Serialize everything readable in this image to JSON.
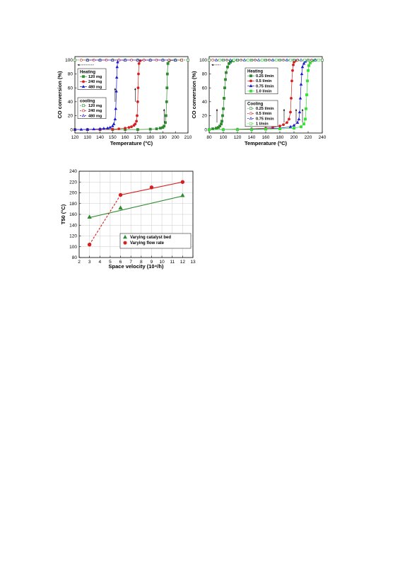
{
  "figures": {
    "left_top": {
      "xlabel": "Temperature (°C)",
      "ylabel": "CO conversion (%)",
      "xticks": [
        "120",
        "130",
        "140",
        "150",
        "160",
        "170",
        "180",
        "190",
        "200",
        "210"
      ],
      "yticks": [
        "0",
        "20",
        "40",
        "60",
        "80",
        "100"
      ],
      "heating_title": "Heating",
      "cooling_title": "cooling",
      "heating_entries": [
        "120 mg",
        "240 mg",
        "480 mg"
      ],
      "cooling_entries": [
        "120 mg",
        "240 mg",
        "480 mg"
      ]
    },
    "right_top": {
      "xlabel": "Temperature (ºC)",
      "ylabel": "CO conversion (%)",
      "xticks": [
        "80",
        "100",
        "120",
        "140",
        "160",
        "180",
        "200",
        "220",
        "240"
      ],
      "yticks": [
        "0",
        "20",
        "40",
        "60",
        "80",
        "100"
      ],
      "heating_title": "Heating",
      "cooling_title": "Cooling",
      "heating_entries": [
        "0.25 l/min",
        "0.5 l/min",
        "0.75 l/min",
        "1.0 l/min"
      ],
      "cooling_entries": [
        "0.25 l/min",
        "0.5 l/min",
        "0.75 l/min",
        "1 l/min"
      ]
    },
    "bottom": {
      "xlabel": "Space velocity (10⁴/h)",
      "ylabel": "T50 (°C)",
      "xticks": [
        "2",
        "3",
        "4",
        "5",
        "6",
        "7",
        "8",
        "9",
        "10",
        "11",
        "12",
        "13"
      ],
      "yticks": [
        "80",
        "100",
        "120",
        "140",
        "160",
        "180",
        "200",
        "220",
        "240"
      ],
      "legend": [
        "Varying catalyst bed",
        "Varying flow rate"
      ]
    }
  },
  "colors": {
    "green": "#2e8b2e",
    "red": "#d62020",
    "blue": "#1a1ad0",
    "lightgreen": "#33e033",
    "grid": "#cccccc"
  },
  "chart_data": [
    {
      "type": "line",
      "xlabel": "Temperature (°C)",
      "ylabel": "CO conversion (%)",
      "xlim": [
        120,
        210
      ],
      "ylim": [
        -5,
        105
      ],
      "series": [
        {
          "name": "Heating 120 mg",
          "mode": "heating",
          "color": "green",
          "marker": "square",
          "x": [
            120,
            130,
            140,
            150,
            160,
            170,
            180,
            185,
            188,
            190,
            191,
            192,
            192.5,
            193,
            193.3,
            193.6,
            194,
            195,
            200,
            205
          ],
          "y": [
            0,
            0,
            0,
            0,
            0,
            0,
            0.5,
            1,
            2,
            3,
            5,
            10,
            20,
            40,
            60,
            80,
            95,
            99,
            100,
            100
          ]
        },
        {
          "name": "Heating 240 mg",
          "mode": "heating",
          "color": "red",
          "marker": "circle",
          "x": [
            120,
            130,
            140,
            150,
            155,
            160,
            163,
            165,
            167,
            168,
            169,
            169.5,
            170,
            170.3,
            170.6,
            171,
            172,
            175,
            180
          ],
          "y": [
            0,
            0,
            0,
            0.5,
            1,
            2,
            3,
            4,
            6,
            8,
            12,
            20,
            40,
            60,
            80,
            95,
            99,
            100,
            100
          ]
        },
        {
          "name": "Heating 480 mg",
          "mode": "heating",
          "color": "blue",
          "marker": "triangle",
          "x": [
            120,
            125,
            130,
            135,
            140,
            143,
            146,
            148,
            150,
            151,
            152,
            152.5,
            153,
            153.3,
            153.6,
            154,
            155,
            160
          ],
          "y": [
            0,
            0,
            0,
            0.5,
            1,
            1.5,
            2,
            3,
            5,
            8,
            15,
            30,
            55,
            75,
            90,
            97,
            100,
            100
          ]
        },
        {
          "name": "cooling 120 mg",
          "mode": "cooling",
          "color": "green",
          "marker": "square-open",
          "x": [
            120,
            130,
            140,
            150,
            160,
            170,
            180,
            190,
            200,
            210
          ],
          "y": [
            100,
            100,
            100,
            100,
            100,
            100,
            100,
            100,
            100,
            100
          ]
        },
        {
          "name": "cooling 240 mg",
          "mode": "cooling",
          "color": "red",
          "marker": "circle-open",
          "x": [
            125,
            135,
            145,
            155,
            165,
            175,
            185,
            195,
            205
          ],
          "y": [
            100,
            100,
            100,
            100,
            100,
            100,
            100,
            100,
            100
          ]
        },
        {
          "name": "cooling 480 mg",
          "mode": "cooling",
          "color": "blue",
          "marker": "triangle-open",
          "x": [
            130,
            140,
            150,
            160,
            170,
            180,
            190,
            200
          ],
          "y": [
            100,
            100,
            100,
            100,
            100,
            100,
            100,
            100
          ]
        }
      ],
      "legend": "left"
    },
    {
      "type": "line",
      "xlabel": "Temperature (ºC)",
      "ylabel": "CO conversion (%)",
      "xlim": [
        80,
        240
      ],
      "ylim": [
        -5,
        105
      ],
      "series": [
        {
          "name": "Heating 0.25 l/min",
          "mode": "heating",
          "color": "green",
          "marker": "square",
          "x": [
            80,
            85,
            90,
            93,
            95,
            97,
            98,
            99,
            100,
            101,
            102,
            103,
            104,
            106,
            108,
            110,
            114,
            120
          ],
          "y": [
            0,
            1,
            2,
            3,
            5,
            8,
            12,
            20,
            30,
            45,
            60,
            72,
            82,
            90,
            95,
            97,
            99,
            100
          ]
        },
        {
          "name": "Heating 0.5 l/min",
          "mode": "heating",
          "color": "red",
          "marker": "circle",
          "x": [
            80,
            100,
            120,
            140,
            160,
            170,
            180,
            185,
            190,
            193,
            195,
            196,
            197,
            198,
            199,
            200,
            202,
            205
          ],
          "y": [
            0,
            0,
            0.5,
            1,
            2,
            3,
            5,
            7,
            10,
            15,
            25,
            45,
            70,
            85,
            93,
            97,
            99,
            100
          ]
        },
        {
          "name": "Heating 0.75 l/min",
          "mode": "heating",
          "color": "blue",
          "marker": "triangle",
          "x": [
            80,
            100,
            120,
            140,
            160,
            180,
            195,
            200,
            205,
            207,
            208,
            209,
            210,
            211,
            212,
            214,
            216,
            220
          ],
          "y": [
            0,
            0,
            0,
            0.5,
            1,
            2,
            4,
            6,
            10,
            15,
            25,
            45,
            65,
            80,
            90,
            95,
            98,
            100
          ]
        },
        {
          "name": "Heating 1.0 l/min",
          "mode": "heating",
          "color": "lightgreen",
          "marker": "square",
          "x": [
            80,
            100,
            120,
            140,
            160,
            180,
            200,
            210,
            214,
            216,
            217,
            218,
            219,
            220,
            221,
            223,
            226,
            230
          ],
          "y": [
            0,
            0,
            0,
            0,
            0.5,
            1,
            2,
            4,
            8,
            15,
            30,
            50,
            70,
            85,
            92,
            96,
            99,
            100
          ]
        },
        {
          "name": "Cooling 0.25 l/min",
          "mode": "cooling",
          "color": "green",
          "marker": "square-open",
          "x": [
            80,
            100,
            120,
            140,
            160,
            180,
            200,
            220,
            240
          ],
          "y": [
            100,
            100,
            100,
            100,
            100,
            100,
            100,
            100,
            100
          ]
        },
        {
          "name": "Cooling 0.5 l/min",
          "mode": "cooling",
          "color": "red",
          "marker": "circle-open",
          "x": [
            85,
            105,
            125,
            145,
            165,
            185,
            205,
            225
          ],
          "y": [
            100,
            100,
            100,
            100,
            100,
            100,
            100,
            100
          ]
        },
        {
          "name": "Cooling 0.75 l/min",
          "mode": "cooling",
          "color": "blue",
          "marker": "triangle-open",
          "x": [
            90,
            110,
            130,
            150,
            170,
            190,
            210,
            230
          ],
          "y": [
            100,
            100,
            100,
            100,
            100,
            100,
            100,
            100
          ]
        },
        {
          "name": "Cooling 1 l/min",
          "mode": "cooling",
          "color": "lightgreen",
          "marker": "square-open",
          "x": [
            95,
            115,
            135,
            155,
            175,
            195,
            215,
            235
          ],
          "y": [
            100,
            100,
            100,
            100,
            100,
            100,
            100,
            100
          ]
        }
      ],
      "legend": "left"
    },
    {
      "type": "scatter",
      "xlabel": "Space velocity (10⁴/h)",
      "ylabel": "T50 (°C)",
      "xlim": [
        2,
        13
      ],
      "ylim": [
        80,
        240
      ],
      "grid": true,
      "series": [
        {
          "name": "Varying catalyst bed",
          "color": "green",
          "marker": "triangle",
          "x": [
            3,
            6,
            12
          ],
          "y": [
            155,
            172,
            195
          ],
          "fit": {
            "x": [
              3,
              12
            ],
            "y": [
              154,
              194
            ],
            "style": "solid"
          }
        },
        {
          "name": "Varying flow rate",
          "color": "red",
          "marker": "circle",
          "x": [
            3,
            6,
            9,
            12
          ],
          "y": [
            104,
            196,
            210,
            220
          ],
          "fit_segments": [
            {
              "x": [
                3,
                6
              ],
              "y": [
                104,
                196
              ],
              "style": "dashed"
            },
            {
              "x": [
                6,
                12
              ],
              "y": [
                196,
                220
              ],
              "style": "solid"
            }
          ]
        }
      ],
      "legend": "bottom-right"
    }
  ]
}
